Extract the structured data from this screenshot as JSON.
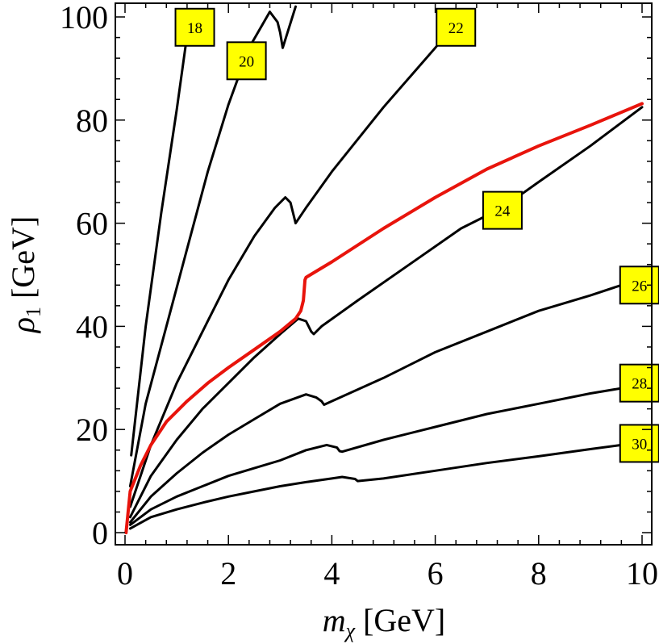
{
  "chart_data": {
    "type": "line",
    "title": "",
    "xlabel": {
      "main": "m",
      "sub": "χ",
      "unit": "[GeV]"
    },
    "ylabel": {
      "main": "ρ",
      "sub": "1",
      "unit": "[GeV]"
    },
    "xlim": [
      0,
      10
    ],
    "ylim": [
      0,
      100
    ],
    "xticks": [
      0,
      2,
      4,
      6,
      8,
      10
    ],
    "yticks": [
      0,
      20,
      40,
      60,
      80,
      100
    ],
    "xtick_labels": [
      "0",
      "2",
      "4",
      "6",
      "8",
      "10"
    ],
    "ytick_labels": [
      "0",
      "20",
      "40",
      "60",
      "80",
      "100"
    ],
    "grid": false,
    "colors": {
      "contour": "#000000",
      "highlight": "#e8140c",
      "label_fill": "#ffff00"
    },
    "series": [
      {
        "name": "18",
        "label": "18",
        "label_at": [
          1.35,
          98
        ],
        "highlight": false,
        "points": [
          [
            0.12,
            15
          ],
          [
            0.4,
            40
          ],
          [
            0.7,
            62
          ],
          [
            1.0,
            82
          ],
          [
            1.25,
            100
          ]
        ]
      },
      {
        "name": "20",
        "label": "20",
        "label_at": [
          2.35,
          91.5
        ],
        "highlight": false,
        "points": [
          [
            0.1,
            9
          ],
          [
            0.4,
            25
          ],
          [
            0.8,
            40
          ],
          [
            1.2,
            55
          ],
          [
            1.6,
            70
          ],
          [
            2.0,
            83
          ],
          [
            2.4,
            94
          ],
          [
            2.8,
            101
          ],
          [
            2.95,
            99
          ],
          [
            3.0,
            97
          ],
          [
            3.05,
            94
          ],
          [
            3.3,
            102
          ]
        ]
      },
      {
        "name": "22",
        "label": "22",
        "label_at": [
          6.4,
          98
        ],
        "highlight": false,
        "points": [
          [
            0.1,
            5
          ],
          [
            0.5,
            17
          ],
          [
            1.0,
            29
          ],
          [
            1.5,
            39
          ],
          [
            2.0,
            49
          ],
          [
            2.5,
            57.5
          ],
          [
            2.9,
            63
          ],
          [
            3.1,
            65
          ],
          [
            3.2,
            64
          ],
          [
            3.25,
            62
          ],
          [
            3.3,
            60
          ],
          [
            3.5,
            63
          ],
          [
            4.0,
            70
          ],
          [
            5.0,
            82.5
          ],
          [
            6.0,
            94
          ],
          [
            6.5,
            100
          ]
        ]
      },
      {
        "name": "24",
        "label": "24",
        "label_at": [
          7.3,
          62.5
        ],
        "highlight": false,
        "points": [
          [
            0.1,
            3
          ],
          [
            0.5,
            11
          ],
          [
            1.0,
            18
          ],
          [
            1.5,
            24
          ],
          [
            2.0,
            29
          ],
          [
            2.5,
            34
          ],
          [
            3.0,
            38.5
          ],
          [
            3.35,
            41.5
          ],
          [
            3.5,
            41
          ],
          [
            3.6,
            39
          ],
          [
            3.65,
            38.5
          ],
          [
            3.8,
            40
          ],
          [
            4.5,
            45
          ],
          [
            5.5,
            52
          ],
          [
            6.5,
            59
          ],
          [
            7.3,
            63
          ],
          [
            8.0,
            68
          ],
          [
            9.0,
            75
          ],
          [
            10.0,
            82.5
          ]
        ]
      },
      {
        "name": "26",
        "label": "26",
        "label_at": [
          9.95,
          48
        ],
        "highlight": false,
        "points": [
          [
            0.1,
            2
          ],
          [
            0.5,
            7
          ],
          [
            1.0,
            11.5
          ],
          [
            1.5,
            15.5
          ],
          [
            2.0,
            19
          ],
          [
            2.5,
            22
          ],
          [
            3.0,
            25
          ],
          [
            3.5,
            26.8
          ],
          [
            3.7,
            26.2
          ],
          [
            3.8,
            25.5
          ],
          [
            3.85,
            24.8
          ],
          [
            4.0,
            25.5
          ],
          [
            5.0,
            30
          ],
          [
            6.0,
            35
          ],
          [
            7.0,
            39
          ],
          [
            8.0,
            43
          ],
          [
            9.0,
            46
          ],
          [
            9.6,
            48
          ]
        ]
      },
      {
        "name": "28",
        "label": "28",
        "label_at": [
          9.95,
          29
        ],
        "highlight": false,
        "points": [
          [
            0.1,
            1.5
          ],
          [
            0.5,
            4.5
          ],
          [
            1.0,
            7
          ],
          [
            1.5,
            9
          ],
          [
            2.0,
            11
          ],
          [
            2.5,
            12.5
          ],
          [
            3.0,
            14
          ],
          [
            3.5,
            16
          ],
          [
            3.9,
            17
          ],
          [
            4.1,
            16.5
          ],
          [
            4.15,
            15.8
          ],
          [
            4.2,
            15.7
          ],
          [
            5.0,
            18
          ],
          [
            6.0,
            20.5
          ],
          [
            7.0,
            23
          ],
          [
            8.0,
            25
          ],
          [
            9.0,
            27
          ],
          [
            9.6,
            28
          ]
        ]
      },
      {
        "name": "30",
        "label": "30",
        "label_at": [
          9.95,
          17.3
        ],
        "highlight": false,
        "points": [
          [
            0.1,
            0.8
          ],
          [
            0.5,
            3
          ],
          [
            1.0,
            4.5
          ],
          [
            1.5,
            5.8
          ],
          [
            2.0,
            7
          ],
          [
            2.5,
            8
          ],
          [
            3.0,
            9
          ],
          [
            3.5,
            9.8
          ],
          [
            4.0,
            10.5
          ],
          [
            4.2,
            10.8
          ],
          [
            4.45,
            10.4
          ],
          [
            4.5,
            10
          ],
          [
            5.0,
            10.5
          ],
          [
            6.0,
            12
          ],
          [
            7.0,
            13.5
          ],
          [
            8.0,
            14.8
          ],
          [
            9.0,
            16.2
          ],
          [
            9.6,
            17
          ]
        ]
      },
      {
        "name": "red",
        "label": "",
        "highlight": true,
        "points": [
          [
            0.02,
            0
          ],
          [
            0.05,
            3
          ],
          [
            0.1,
            8
          ],
          [
            0.3,
            13
          ],
          [
            0.5,
            17
          ],
          [
            0.8,
            21.5
          ],
          [
            1.2,
            25.5
          ],
          [
            1.6,
            29
          ],
          [
            2.0,
            32
          ],
          [
            2.5,
            35.5
          ],
          [
            3.0,
            39
          ],
          [
            3.3,
            41.5
          ],
          [
            3.4,
            43
          ],
          [
            3.45,
            45
          ],
          [
            3.48,
            49
          ],
          [
            3.5,
            49.5
          ],
          [
            4.0,
            52.5
          ],
          [
            5.0,
            59
          ],
          [
            6.0,
            65
          ],
          [
            7.0,
            70.5
          ],
          [
            8.0,
            75
          ],
          [
            9.0,
            79
          ],
          [
            10.0,
            83.2
          ]
        ]
      }
    ]
  }
}
